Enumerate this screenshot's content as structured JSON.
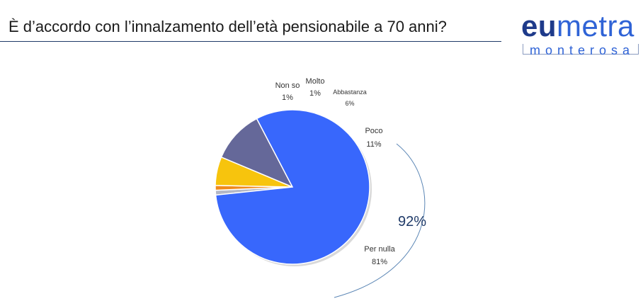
{
  "header": {
    "title": "È d’accordo con l’innalzamento dell’età pensionabile a 70 anni?"
  },
  "logo": {
    "main_part1": "eu",
    "main_part2": "metra",
    "sub": "monterosa"
  },
  "chart_data": {
    "type": "pie",
    "title": "",
    "slices": [
      {
        "label": "Non so",
        "value": 1,
        "value_label": "1%",
        "color": "#b4b8c6"
      },
      {
        "label": "Molto",
        "value": 1,
        "value_label": "1%",
        "color": "#f08a1c"
      },
      {
        "label": "Abbastanza",
        "value": 6,
        "value_label": "6%",
        "color": "#f7c40d"
      },
      {
        "label": "Poco",
        "value": 11,
        "value_label": "11%",
        "color": "#656899"
      },
      {
        "label": "Per nulla",
        "value": 81,
        "value_label": "81%",
        "color": "#3867fc"
      }
    ],
    "annotation": {
      "text": "92%",
      "color": "#1f3a68",
      "arc_color": "#5b86b5"
    }
  }
}
